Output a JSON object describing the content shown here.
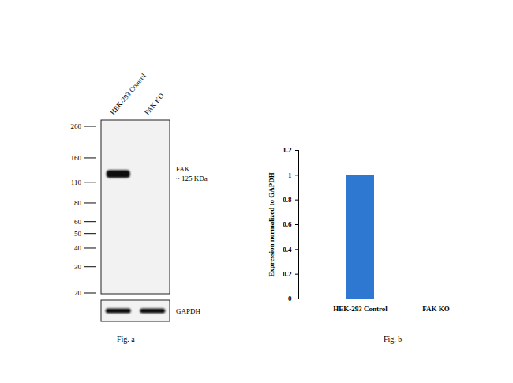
{
  "chart_data": {
    "type": "bar",
    "caption": "Fig. b",
    "categories": [
      "HEK-293 Control",
      "FAK KO"
    ],
    "values": [
      1,
      0
    ],
    "color": "#2e78d2",
    "ylabel": "Expression normalized to GAPDH",
    "ylim": [
      0,
      1.2
    ],
    "yticks": [
      0,
      0.2,
      0.4,
      0.6,
      0.8,
      1,
      1.2
    ]
  },
  "blot": {
    "caption": "Fig. a",
    "lanes": [
      "HEK-293 Control",
      "FAK KO"
    ],
    "markers_kda": [
      260,
      160,
      110,
      80,
      60,
      50,
      40,
      30,
      20
    ],
    "bands": [
      {
        "name": "FAK",
        "size_label": "~ 125 KDa",
        "kda": 125,
        "present": [
          true,
          false
        ]
      }
    ],
    "loading_control": {
      "name": "GAPDH",
      "present": [
        true,
        true
      ]
    }
  }
}
